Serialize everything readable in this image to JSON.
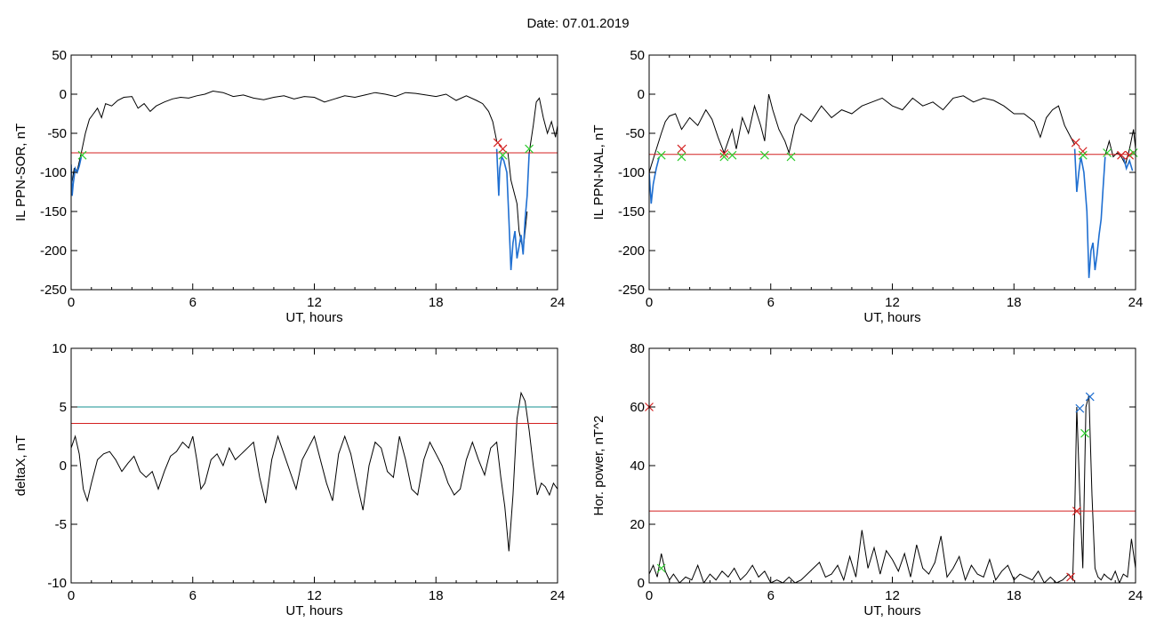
{
  "header": {
    "date_label": "Date:  07.01.2019"
  },
  "colors": {
    "trace": "#000000",
    "substorm": "#1f6fd1",
    "threshold": "#d42020",
    "threshold2": "#139090",
    "onset": "#d42020",
    "end": "#2ecc2e",
    "peak": "#1f6fd1"
  },
  "chart_data": [
    {
      "type": "line",
      "ylabel": "IL PPN-SOR, nT",
      "xlabel": "UT, hours",
      "xlim": [
        0,
        24
      ],
      "ylim": [
        -250,
        50
      ],
      "xticks": [
        0,
        6,
        12,
        18,
        24
      ],
      "yticks": [
        50,
        0,
        -50,
        -100,
        -150,
        -200,
        -250
      ],
      "thresholds": [
        {
          "y": -75,
          "color": "#d42020"
        }
      ],
      "series": [
        {
          "color": "#000000",
          "x": [
            0,
            0.15,
            0.3,
            0.5,
            0.7,
            0.9,
            1.1,
            1.3,
            1.5,
            1.7,
            2.0,
            2.3,
            2.6,
            3.0,
            3.3,
            3.6,
            3.9,
            4.2,
            4.6,
            5.0,
            5.4,
            5.8,
            6.2,
            6.6,
            7.0,
            7.5,
            8.0,
            8.5,
            9.0,
            9.5,
            10.0,
            10.5,
            11.0,
            11.5,
            12.0,
            12.5,
            13.0,
            13.5,
            14.0,
            14.5,
            15.0,
            15.5,
            16.0,
            16.5,
            17.0,
            17.5,
            18.0,
            18.5,
            19.0,
            19.5,
            20.0,
            20.3,
            20.6,
            20.8,
            21.0
          ],
          "y": [
            -120,
            -95,
            -98,
            -75,
            -50,
            -32,
            -25,
            -18,
            -30,
            -12,
            -15,
            -8,
            -4,
            -3,
            -18,
            -12,
            -22,
            -15,
            -10,
            -6,
            -4,
            -5,
            -2,
            0,
            4,
            2,
            -3,
            -1,
            -5,
            -7,
            -4,
            -2,
            -6,
            -3,
            -4,
            -10,
            -6,
            -2,
            -4,
            -1,
            2,
            0,
            -3,
            2,
            1,
            -1,
            -3,
            0,
            -8,
            -2,
            -8,
            -12,
            -22,
            -35,
            -60
          ]
        },
        {
          "color": "#1f6fd1",
          "x": [
            0,
            0.05,
            0.1,
            0.2,
            0.3,
            0.4,
            0.5
          ],
          "y": [
            -90,
            -130,
            -115,
            -95,
            -100,
            -92,
            -80
          ]
        },
        {
          "color": "#000000",
          "x": [
            21.55,
            21.7,
            21.85,
            22.0,
            22.1,
            22.3,
            22.5
          ],
          "y": [
            -75,
            -110,
            -125,
            -140,
            -175,
            -200,
            -150
          ]
        },
        {
          "color": "#1f6fd1",
          "x": [
            21.0,
            21.1,
            21.15,
            21.25,
            21.35,
            21.5,
            21.6,
            21.7,
            21.8,
            21.9,
            22.0,
            22.1,
            22.2,
            22.3,
            22.4,
            22.5,
            22.6
          ],
          "y": [
            -70,
            -130,
            -95,
            -80,
            -85,
            -100,
            -160,
            -225,
            -190,
            -175,
            -210,
            -195,
            -180,
            -205,
            -160,
            -130,
            -75
          ]
        },
        {
          "color": "#000000",
          "x": [
            22.6,
            22.8,
            22.95,
            23.1,
            23.3,
            23.5,
            23.7,
            23.9,
            24.0
          ],
          "y": [
            -75,
            -40,
            -10,
            -5,
            -30,
            -50,
            -35,
            -55,
            -40
          ]
        }
      ],
      "onset_markers": [
        {
          "x": 21.05,
          "y": -62
        },
        {
          "x": 21.3,
          "y": -70
        }
      ],
      "end_markers": [
        {
          "x": 0.55,
          "y": -78
        },
        {
          "x": 21.3,
          "y": -78
        },
        {
          "x": 22.6,
          "y": -70
        }
      ]
    },
    {
      "type": "line",
      "ylabel": "IL PPN-NAL, nT",
      "xlabel": "UT, hours",
      "xlim": [
        0,
        24
      ],
      "ylim": [
        -250,
        50
      ],
      "xticks": [
        0,
        6,
        12,
        18,
        24
      ],
      "yticks": [
        50,
        0,
        -50,
        -100,
        -150,
        -200,
        -250
      ],
      "thresholds": [
        {
          "y": -77,
          "color": "#d42020"
        }
      ],
      "series": [
        {
          "color": "#000000",
          "x": [
            0,
            0.3,
            0.6,
            0.8,
            1.0,
            1.3,
            1.6,
            2.0,
            2.4,
            2.8,
            3.1,
            3.4,
            3.7,
            3.9,
            4.1,
            4.3,
            4.6,
            4.9,
            5.2,
            5.5,
            5.7,
            5.9,
            6.1,
            6.4,
            6.7,
            6.9,
            7.2,
            7.5,
            8.0,
            8.5,
            9.0,
            9.5,
            10.0,
            10.5,
            11.0,
            11.5,
            12.0,
            12.5,
            13.0,
            13.5,
            14.0,
            14.5,
            15.0,
            15.5,
            16.0,
            16.5,
            17.0,
            17.5,
            18.0,
            18.5,
            19.0,
            19.3,
            19.6,
            19.9,
            20.2,
            20.5,
            20.8,
            21.0
          ],
          "y": [
            -100,
            -75,
            -50,
            -35,
            -28,
            -25,
            -45,
            -30,
            -40,
            -20,
            -32,
            -55,
            -75,
            -60,
            -45,
            -70,
            -30,
            -50,
            -15,
            -40,
            -60,
            0,
            -20,
            -45,
            -60,
            -75,
            -40,
            -25,
            -35,
            -15,
            -30,
            -20,
            -25,
            -15,
            -10,
            -5,
            -15,
            -20,
            -5,
            -15,
            -10,
            -20,
            -5,
            -2,
            -10,
            -5,
            -8,
            -15,
            -25,
            -25,
            -35,
            -55,
            -30,
            -20,
            -15,
            -40,
            -55,
            -65
          ]
        },
        {
          "color": "#1f6fd1",
          "x": [
            0,
            0.1,
            0.2,
            0.35,
            0.5
          ],
          "y": [
            -100,
            -140,
            -115,
            -95,
            -80
          ]
        },
        {
          "color": "#1f6fd1",
          "x": [
            21.0,
            21.1,
            21.2,
            21.3,
            21.45,
            21.6,
            21.7,
            21.8,
            21.9,
            22.0,
            22.1,
            22.2,
            22.3,
            22.4,
            22.5
          ],
          "y": [
            -70,
            -125,
            -100,
            -80,
            -100,
            -150,
            -235,
            -200,
            -190,
            -225,
            -205,
            -180,
            -160,
            -120,
            -80
          ]
        },
        {
          "color": "#000000",
          "x": [
            22.5,
            22.7,
            22.9,
            23.1,
            23.3,
            23.5,
            23.7,
            23.9,
            24.0
          ],
          "y": [
            -78,
            -60,
            -80,
            -75,
            -80,
            -90,
            -70,
            -45,
            -70
          ]
        },
        {
          "color": "#1f6fd1",
          "x": [
            23.4,
            23.55,
            23.7,
            23.85
          ],
          "y": [
            -80,
            -95,
            -85,
            -98
          ]
        }
      ],
      "onset_markers": [
        {
          "x": 1.6,
          "y": -70
        },
        {
          "x": 3.7,
          "y": -76
        },
        {
          "x": 21.05,
          "y": -62
        },
        {
          "x": 21.4,
          "y": -73
        },
        {
          "x": 23.3,
          "y": -78
        },
        {
          "x": 23.7,
          "y": -78
        }
      ],
      "end_markers": [
        {
          "x": 0.6,
          "y": -78
        },
        {
          "x": 1.6,
          "y": -80
        },
        {
          "x": 3.7,
          "y": -80
        },
        {
          "x": 4.1,
          "y": -78
        },
        {
          "x": 5.7,
          "y": -78
        },
        {
          "x": 7.0,
          "y": -80
        },
        {
          "x": 21.4,
          "y": -78
        },
        {
          "x": 22.6,
          "y": -75
        },
        {
          "x": 23.9,
          "y": -75
        }
      ]
    },
    {
      "type": "line",
      "ylabel": "deltaX, nT",
      "xlabel": "UT, hours",
      "xlim": [
        0,
        24
      ],
      "ylim": [
        -10,
        10
      ],
      "xticks": [
        0,
        6,
        12,
        18,
        24
      ],
      "yticks": [
        10,
        5,
        0,
        -5,
        -10
      ],
      "thresholds": [
        {
          "y": 5.0,
          "color": "#139090"
        },
        {
          "y": 3.6,
          "color": "#d42020"
        }
      ],
      "series": [
        {
          "color": "#000000",
          "x": [
            0,
            0.2,
            0.4,
            0.6,
            0.8,
            1.0,
            1.3,
            1.6,
            1.9,
            2.2,
            2.5,
            2.8,
            3.1,
            3.4,
            3.7,
            4.0,
            4.3,
            4.6,
            4.9,
            5.2,
            5.5,
            5.8,
            6.0,
            6.2,
            6.4,
            6.6,
            6.9,
            7.2,
            7.5,
            7.8,
            8.1,
            8.4,
            8.7,
            9.0,
            9.3,
            9.6,
            9.9,
            10.2,
            10.5,
            10.8,
            11.1,
            11.4,
            11.7,
            12.0,
            12.3,
            12.6,
            12.9,
            13.2,
            13.5,
            13.8,
            14.1,
            14.4,
            14.7,
            15.0,
            15.3,
            15.6,
            15.9,
            16.2,
            16.5,
            16.8,
            17.1,
            17.4,
            17.7,
            18.0,
            18.3,
            18.6,
            18.9,
            19.2,
            19.5,
            19.8,
            20.1,
            20.4,
            20.7,
            21.0,
            21.2,
            21.4,
            21.6,
            21.8,
            22.0,
            22.2,
            22.4,
            22.6,
            22.8,
            23.0,
            23.2,
            23.4,
            23.6,
            23.8,
            24.0
          ],
          "y": [
            1.5,
            2.5,
            1.0,
            -2.0,
            -3.0,
            -1.5,
            0.5,
            1.0,
            1.2,
            0.5,
            -0.5,
            0.2,
            0.8,
            -0.5,
            -1.0,
            -0.5,
            -2.0,
            -0.5,
            0.8,
            1.2,
            2.0,
            1.5,
            2.5,
            0.5,
            -2.0,
            -1.5,
            0.5,
            1.0,
            0.0,
            1.5,
            0.5,
            1.0,
            1.5,
            2.0,
            -1.0,
            -3.2,
            0.5,
            2.5,
            1.0,
            -0.5,
            -2.0,
            0.5,
            1.5,
            2.5,
            0.5,
            -1.5,
            -3.0,
            1.0,
            2.5,
            1.0,
            -1.5,
            -3.8,
            0.0,
            2.0,
            1.5,
            -0.5,
            -1.0,
            2.5,
            0.5,
            -2.0,
            -2.5,
            0.5,
            2.0,
            1.0,
            0.0,
            -1.5,
            -2.5,
            -2.0,
            0.5,
            2.0,
            0.5,
            -0.8,
            1.5,
            2.0,
            -1.0,
            -3.5,
            -7.3,
            -2.5,
            4.0,
            6.2,
            5.5,
            3.0,
            0.0,
            -2.5,
            -1.5,
            -1.8,
            -2.5,
            -1.5,
            -2.0
          ]
        }
      ],
      "onset_markers": [],
      "end_markers": []
    },
    {
      "type": "line",
      "ylabel": "Hor. power, nT^2",
      "xlabel": "UT, hours",
      "xlim": [
        0,
        24
      ],
      "ylim": [
        0,
        80
      ],
      "xticks": [
        0,
        6,
        12,
        18,
        24
      ],
      "yticks": [
        80,
        60,
        40,
        20,
        0
      ],
      "thresholds": [
        {
          "y": 24.5,
          "color": "#d42020"
        }
      ],
      "series": [
        {
          "color": "#000000",
          "x": [
            0,
            0.2,
            0.4,
            0.6,
            0.8,
            1.0,
            1.2,
            1.5,
            1.8,
            2.1,
            2.4,
            2.7,
            3.0,
            3.3,
            3.6,
            3.9,
            4.2,
            4.5,
            4.8,
            5.1,
            5.4,
            5.7,
            6.0,
            6.3,
            6.6,
            6.9,
            7.2,
            7.5,
            7.8,
            8.1,
            8.4,
            8.7,
            9.0,
            9.3,
            9.6,
            9.9,
            10.2,
            10.5,
            10.8,
            11.1,
            11.4,
            11.7,
            12.0,
            12.3,
            12.6,
            12.9,
            13.2,
            13.5,
            13.8,
            14.1,
            14.4,
            14.7,
            15.0,
            15.3,
            15.6,
            15.9,
            16.2,
            16.5,
            16.8,
            17.1,
            17.4,
            17.7,
            18.0,
            18.3,
            18.6,
            18.9,
            19.2,
            19.5,
            19.8,
            20.1,
            20.4,
            20.7,
            20.9,
            21.0,
            21.1,
            21.25,
            21.4,
            21.55,
            21.7,
            21.85,
            22.0,
            22.15,
            22.3,
            22.45,
            22.6,
            22.8,
            23.0,
            23.2,
            23.4,
            23.6,
            23.8,
            24.0
          ],
          "y": [
            3,
            6,
            2,
            10,
            4,
            1,
            3,
            0,
            2,
            1,
            6,
            0,
            3,
            1,
            4,
            2,
            5,
            1,
            3,
            6,
            2,
            4,
            0,
            1,
            0,
            2,
            0,
            1,
            3,
            5,
            7,
            2,
            3,
            6,
            1,
            9,
            2,
            18,
            5,
            12,
            3,
            11,
            8,
            4,
            10,
            2,
            13,
            5,
            3,
            7,
            16,
            2,
            5,
            9,
            1,
            6,
            3,
            2,
            8,
            1,
            4,
            6,
            1,
            3,
            2,
            1,
            4,
            0,
            2,
            0,
            1,
            3,
            1,
            24,
            60,
            30,
            5,
            60,
            64,
            30,
            5,
            2,
            1,
            3,
            2,
            1,
            4,
            0,
            3,
            2,
            15,
            5
          ]
        }
      ],
      "onset_markers": [
        {
          "x": 0.0,
          "y": 60
        },
        {
          "x": 20.8,
          "y": 2
        },
        {
          "x": 21.1,
          "y": 24.5
        }
      ],
      "end_markers": [
        {
          "x": 0.6,
          "y": 5
        },
        {
          "x": 21.5,
          "y": 51
        }
      ],
      "peak_markers": [
        {
          "x": 21.25,
          "y": 59.5
        },
        {
          "x": 21.75,
          "y": 63.5
        }
      ]
    }
  ]
}
